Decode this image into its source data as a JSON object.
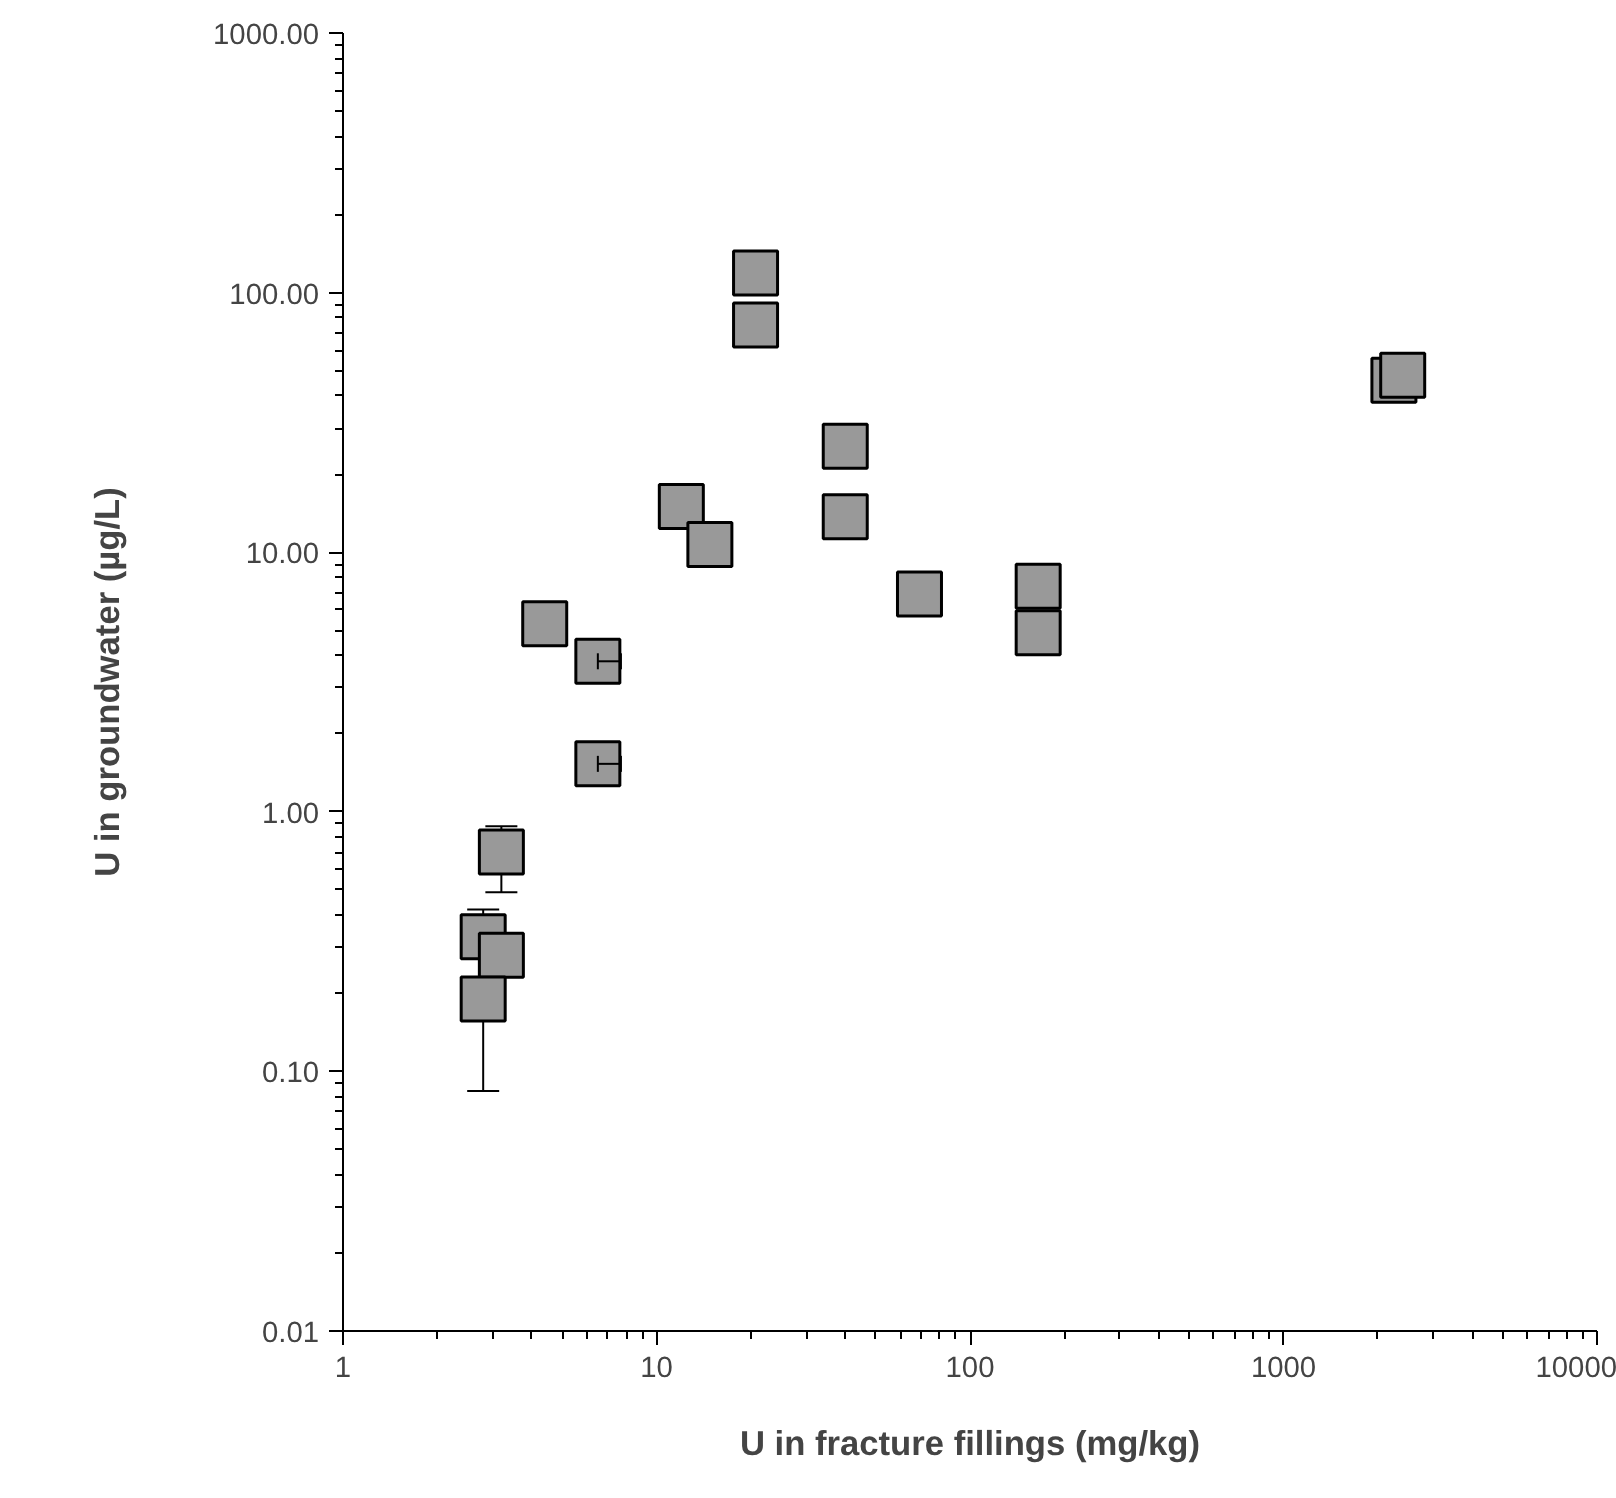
{
  "chart_data": {
    "type": "scatter",
    "xlabel": "U in fracture fillings (mg/kg)",
    "ylabel": "U in groundwater (µg/L)",
    "x": [
      4.4,
      6.5,
      6.5,
      3.2,
      2.8,
      3.2,
      2.8,
      20.7,
      20.7,
      40,
      40,
      12,
      14.8,
      69,
      165,
      165,
      2250,
      2400
    ],
    "series": [
      {
        "color": "#999999",
        "values": [
          5.3,
          3.8,
          1.53,
          0.7,
          0.33,
          0.28,
          0.19,
          119,
          75,
          25.6,
          13.7,
          15,
          10.7,
          6.9,
          7.4,
          4.9,
          46,
          48
        ],
        "errors": [
          null,
          null,
          null,
          [
            0.49,
            0.88
          ],
          [
            0.33,
            0.42
          ],
          null,
          [
            0.084,
            0.19
          ],
          null,
          null,
          null,
          null,
          null,
          null,
          null,
          null,
          null,
          null,
          null
        ],
        "xerrors": [
          null,
          [
            6.5,
            7.7
          ],
          [
            6.5,
            7.7
          ],
          null,
          null,
          null,
          null,
          null,
          null,
          null,
          null,
          null,
          null,
          null,
          null,
          null,
          null,
          null
        ]
      }
    ],
    "marker": "square",
    "log": "xy",
    "grid": false,
    "xlim": [
      1,
      10000
    ],
    "xticks": [
      1,
      10,
      100,
      1000,
      10000
    ],
    "ylim": [
      0.01,
      1000
    ],
    "yticks": [
      {
        "value": 0.01,
        "label": "0.01"
      },
      {
        "value": 0.1,
        "label": "0.10"
      },
      {
        "value": 1,
        "label": "1.00"
      },
      {
        "value": 10,
        "label": "10.00"
      },
      {
        "value": 100,
        "label": "100.00"
      },
      {
        "value": 1000,
        "label": "1000.00"
      }
    ]
  }
}
